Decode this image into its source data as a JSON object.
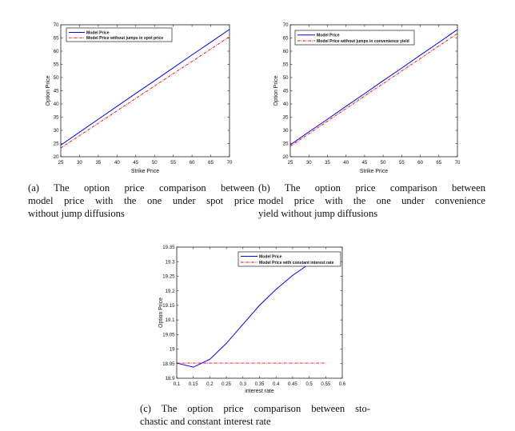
{
  "captions": {
    "a": [
      "(a) The option price comparison between",
      "model price with the one under spot price",
      "without jump diffusions"
    ],
    "b": [
      "(b) The option price comparison between",
      "model price with the one under convenience",
      "yield without jump diffusions"
    ],
    "c": [
      "(c) The option price comparison between sto-",
      "chastic and constant interest rate"
    ]
  },
  "chart_data": [
    {
      "type": "line",
      "title": "",
      "xlabel": "Strike Price",
      "ylabel": "Option Price",
      "xlim": [
        25,
        70
      ],
      "ylim": [
        20,
        70
      ],
      "grid": false,
      "legend_position": "northwest",
      "xticks": [
        25,
        30,
        35,
        40,
        45,
        50,
        55,
        60,
        65,
        70
      ],
      "xtick_labels": [
        "25",
        "30",
        "35",
        "40",
        "45",
        "50",
        "55",
        "60",
        "65",
        "70"
      ],
      "yticks": [
        20,
        25,
        30,
        35,
        40,
        45,
        50,
        55,
        60,
        65,
        70
      ],
      "ytick_labels": [
        "20",
        "25",
        "30",
        "35",
        "40",
        "45",
        "50",
        "55",
        "60",
        "65",
        "70"
      ],
      "x": [
        25,
        30,
        35,
        40,
        45,
        50,
        55,
        60,
        65,
        70
      ],
      "series": [
        {
          "name": "Model Price",
          "color": "#0000ff",
          "style": "solid",
          "values": [
            24.4,
            29.3,
            34.2,
            39.1,
            44.0,
            48.8,
            53.7,
            58.6,
            63.4,
            68.3
          ]
        },
        {
          "name": "Model Price without jumps in spot price",
          "color": "#ff0000",
          "style": "dashdot",
          "values": [
            23.3,
            28.0,
            32.7,
            37.4,
            42.1,
            46.8,
            51.5,
            56.1,
            60.8,
            65.5
          ]
        }
      ]
    },
    {
      "type": "line",
      "title": "",
      "xlabel": "Strike Price",
      "ylabel": "Option Price",
      "xlim": [
        25,
        70
      ],
      "ylim": [
        20,
        70
      ],
      "grid": false,
      "legend_position": "northwest",
      "xticks": [
        25,
        30,
        35,
        40,
        45,
        50,
        55,
        60,
        65,
        70
      ],
      "xtick_labels": [
        "25",
        "30",
        "35",
        "40",
        "45",
        "50",
        "55",
        "60",
        "65",
        "70"
      ],
      "yticks": [
        20,
        25,
        30,
        35,
        40,
        45,
        50,
        55,
        60,
        65,
        70
      ],
      "ytick_labels": [
        "20",
        "25",
        "30",
        "35",
        "40",
        "45",
        "50",
        "55",
        "60",
        "65",
        "70"
      ],
      "x": [
        25,
        30,
        35,
        40,
        45,
        50,
        55,
        60,
        65,
        70
      ],
      "series": [
        {
          "name": "Model Price",
          "color": "#0000ff",
          "style": "solid",
          "values": [
            24.5,
            29.4,
            34.2,
            39.1,
            43.9,
            48.8,
            53.6,
            58.5,
            63.3,
            68.2
          ]
        },
        {
          "name": "Model Price without jumps in convenience yield",
          "color": "#ff0000",
          "style": "dashdot",
          "values": [
            24.0,
            28.7,
            33.5,
            38.2,
            43.0,
            47.7,
            52.5,
            57.2,
            62.0,
            66.7
          ]
        }
      ]
    },
    {
      "type": "line",
      "title": "",
      "xlabel": "interest rate",
      "ylabel": "Option Price",
      "xlim": [
        0.1,
        0.6
      ],
      "ylim": [
        18.9,
        19.35
      ],
      "grid": false,
      "legend_position": "northeast",
      "xticks": [
        0.1,
        0.15,
        0.2,
        0.25,
        0.3,
        0.35,
        0.4,
        0.45,
        0.5,
        0.55,
        0.6
      ],
      "xtick_labels": [
        "0.1",
        "0.15",
        "0.2",
        "0.25",
        "0.3",
        "0.35",
        "0.4",
        "0.45",
        "0.5",
        "0.55",
        "0.6"
      ],
      "yticks": [
        18.9,
        18.95,
        19,
        19.05,
        19.1,
        19.15,
        19.2,
        19.25,
        19.3,
        19.35
      ],
      "ytick_labels": [
        "18.9",
        "18.95",
        "19",
        "19.05",
        "19.1",
        "19.15",
        "19.2",
        "19.25",
        "19.3",
        "19.35"
      ],
      "series": [
        {
          "name": "Model Price",
          "color": "#0000ff",
          "style": "solid",
          "x": [
            0.1,
            0.15,
            0.2,
            0.25,
            0.3,
            0.35,
            0.4,
            0.45,
            0.5
          ],
          "values": [
            18.952,
            18.938,
            18.965,
            19.02,
            19.085,
            19.15,
            19.205,
            19.253,
            19.292
          ]
        },
        {
          "name": "Model Price with constant interest rate",
          "color": "#ff0000",
          "style": "dashdot",
          "x": [
            0.1,
            0.55
          ],
          "values": [
            18.952,
            18.952
          ]
        }
      ]
    }
  ]
}
